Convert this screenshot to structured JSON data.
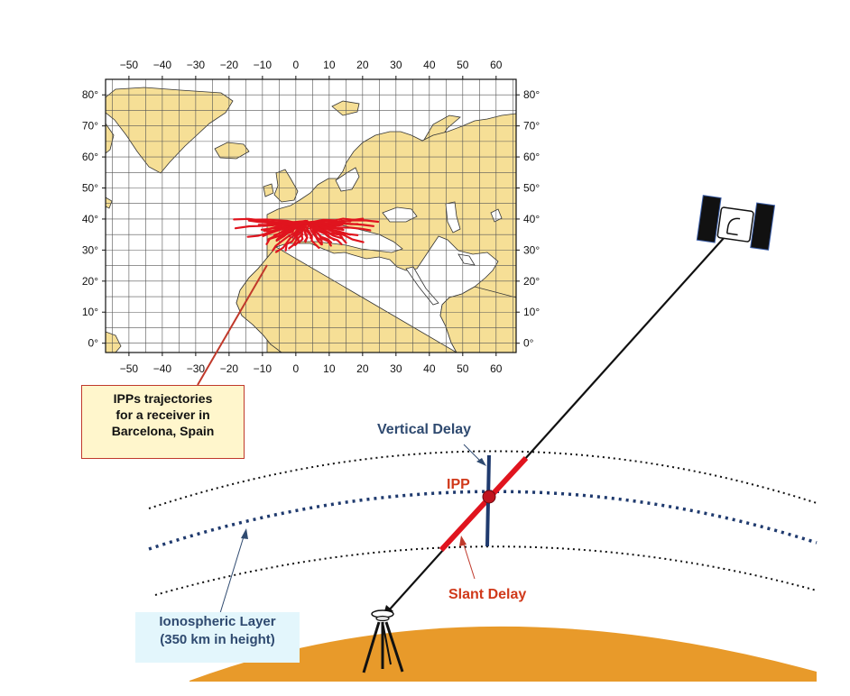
{
  "map": {
    "x_ticks": [
      "-50",
      "-40",
      "-30",
      "-20",
      "-10",
      "0",
      "10",
      "20",
      "30",
      "40",
      "50",
      "60"
    ],
    "y_ticks": [
      "0°",
      "10°",
      "20°",
      "30°",
      "40°",
      "50°",
      "60°",
      "70°",
      "80°"
    ],
    "lon_range": [
      -57,
      66
    ],
    "lat_range": [
      -3,
      85
    ],
    "land_color": "#f6df96",
    "ocean_color": "#ffffff",
    "grid": true,
    "trajectory_color": "#e0141e"
  },
  "callouts": {
    "ipp_trajectories": [
      "IPPs trajectories",
      "for a receiver in",
      "Barcelona, Spain"
    ],
    "ionospheric_layer": [
      "Ionospheric Layer",
      "(350 km in height)"
    ]
  },
  "labels": {
    "vertical_delay": "Vertical Delay",
    "ipp": "IPP",
    "slant_delay": "Slant Delay"
  },
  "colors": {
    "blue_label": "#2f4a70",
    "red_label": "#d0391a",
    "earth": "#e89a2a",
    "layer_center": "#1f3a6e"
  },
  "icons": [
    "satellite-icon",
    "gnss-receiver-tripod-icon"
  ]
}
